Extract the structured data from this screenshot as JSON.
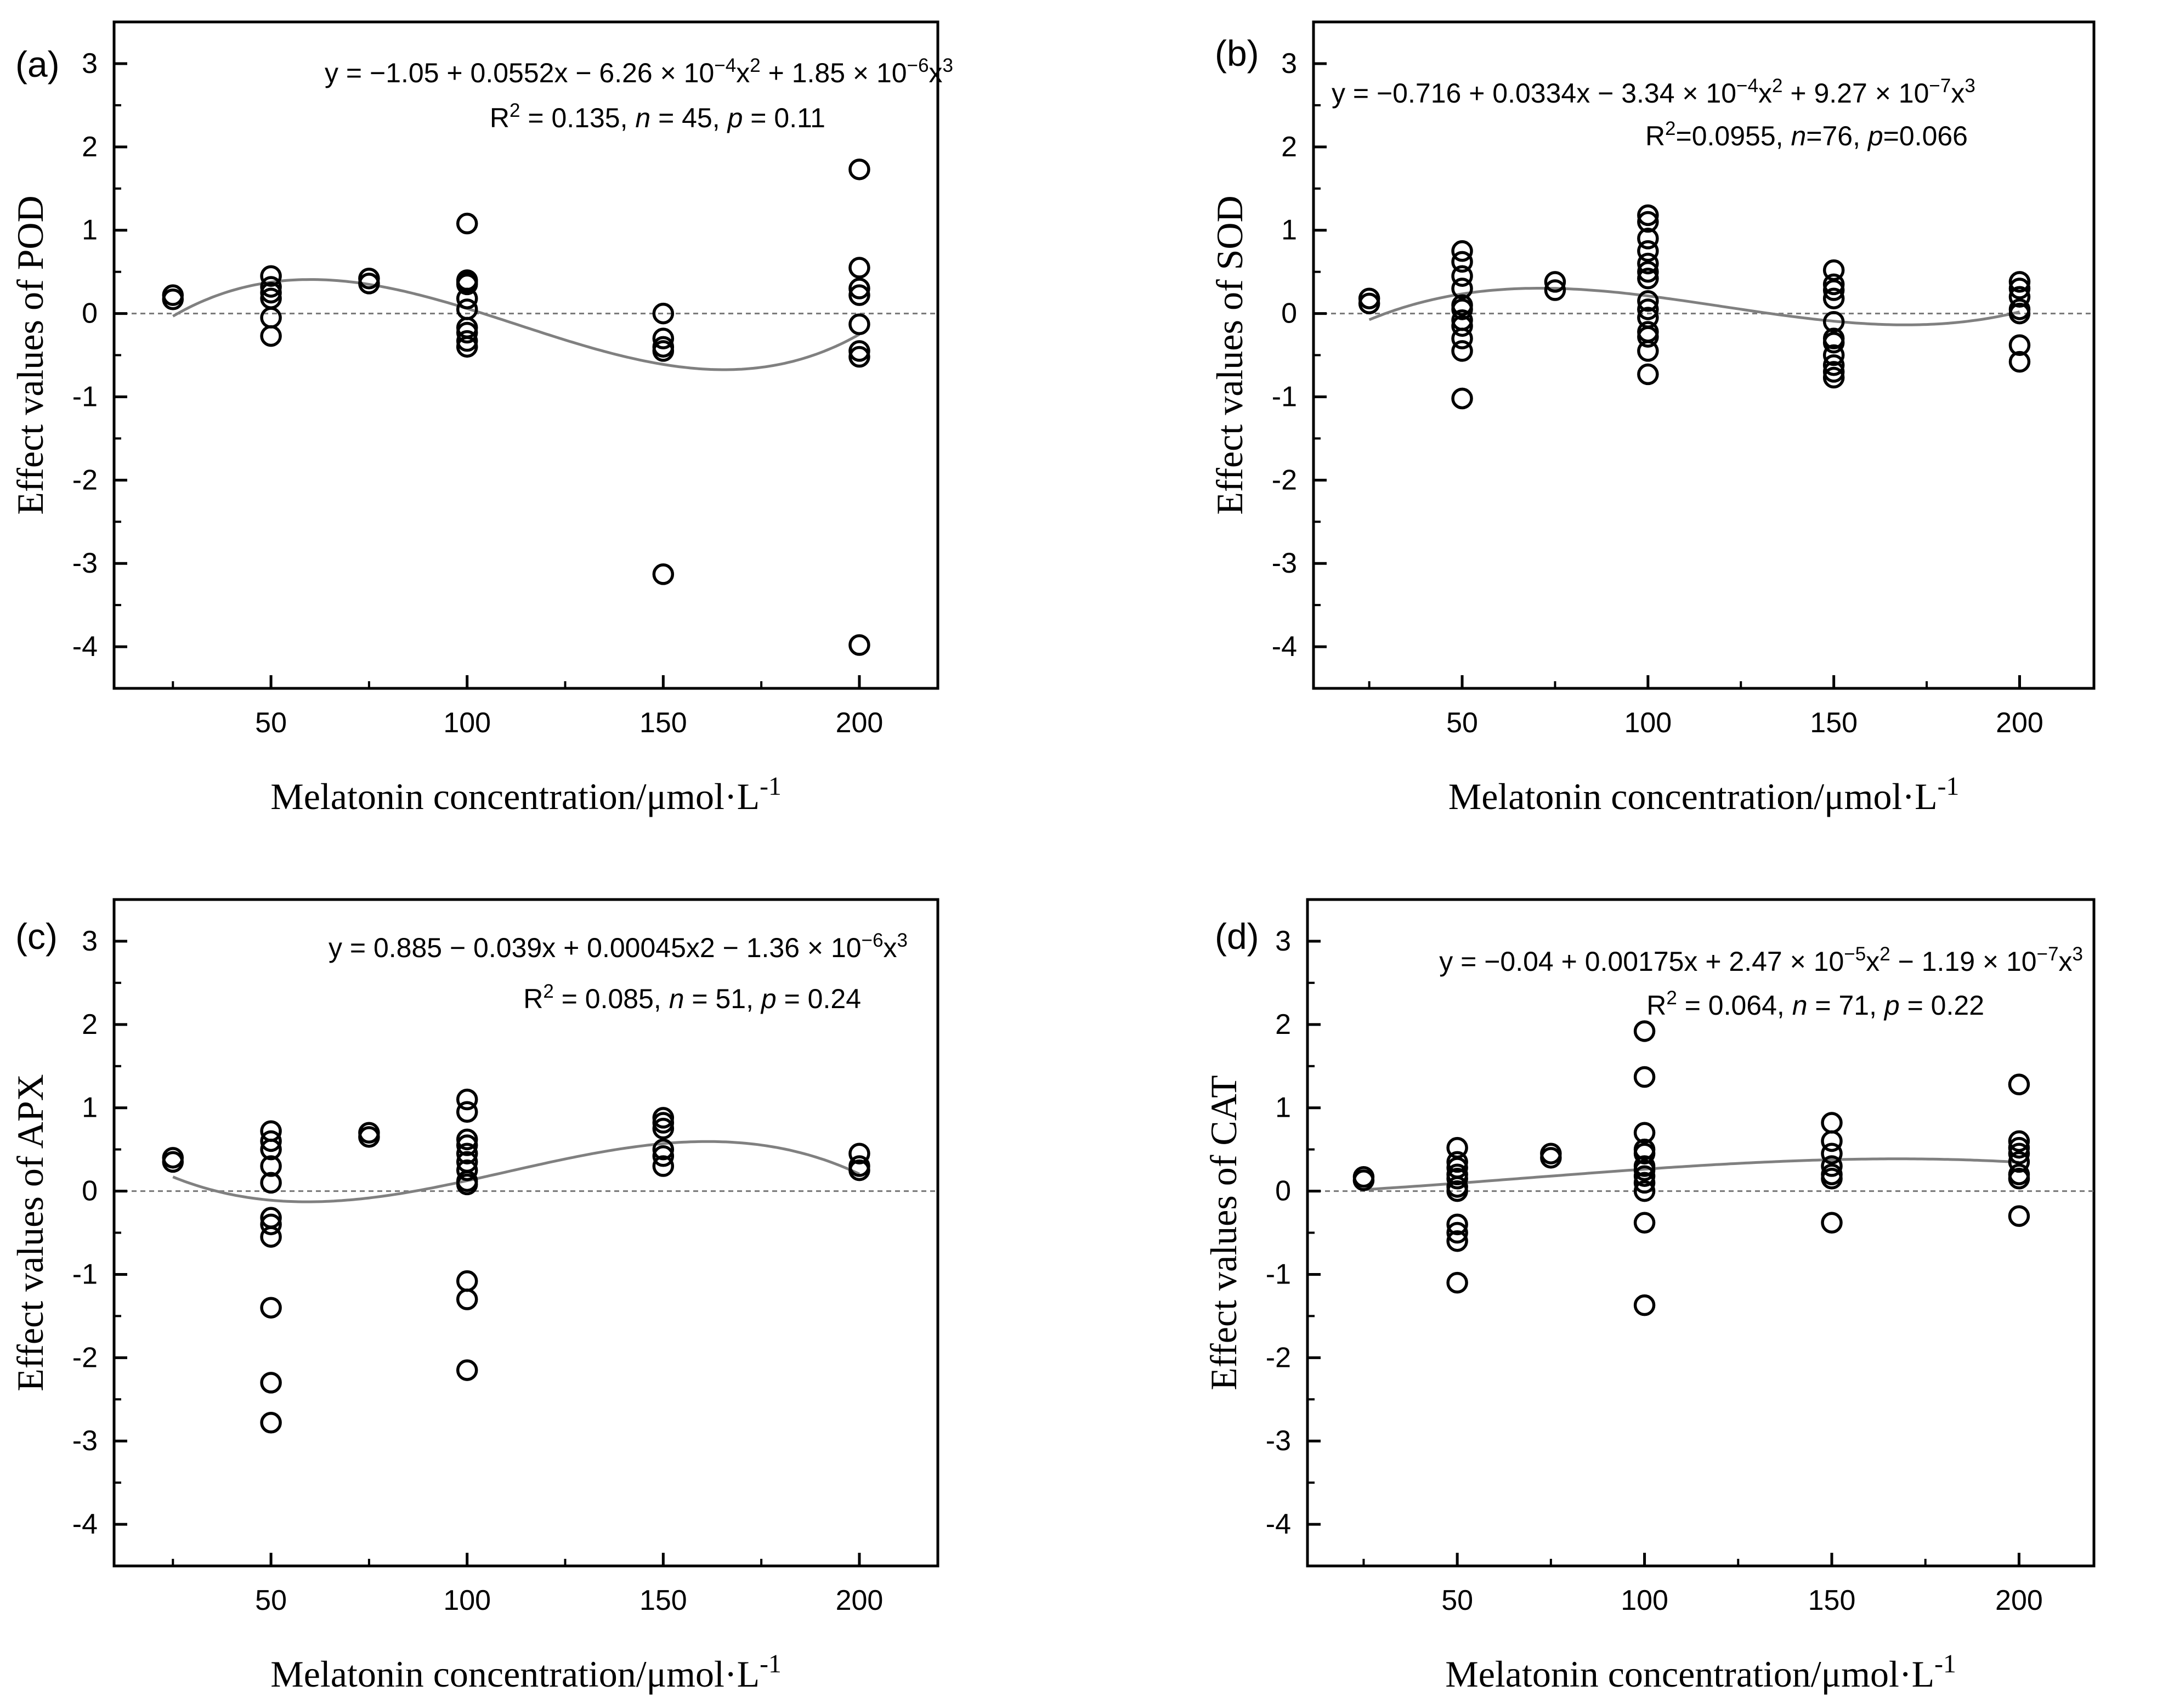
{
  "chart_data": [
    {
      "type": "scatter",
      "panel": "(a)",
      "xlabel": "Melatonin concentration/μmol·L",
      "xlabel_sup": "-1",
      "ylabel": "Effect values of POD",
      "xlim": [
        10,
        220
      ],
      "ylim": [
        -4.5,
        3.5
      ],
      "xticks": [
        50,
        100,
        150,
        200
      ],
      "yticks": [
        3,
        2,
        1,
        0,
        -1,
        -2,
        -3,
        -4
      ],
      "equation": [
        "y = −1.05 + 0.0552x − 6.26 × 10",
        "−4",
        "x",
        "2",
        " + 1.85 × 10",
        "−6",
        "x",
        "3"
      ],
      "stats": [
        "R",
        "2",
        " = 0.135,  ",
        "n",
        " = 45,  ",
        "p",
        " = 0.11"
      ],
      "fit_coefficients": [
        -1.05,
        0.0552,
        -0.000626,
        1.85e-06
      ],
      "fit_range": [
        25,
        200
      ],
      "points": [
        {
          "x": 25,
          "y": [
            0.17,
            0.22
          ]
        },
        {
          "x": 50,
          "y": [
            0.45,
            0.32,
            0.25,
            0.18,
            -0.05,
            -0.27
          ]
        },
        {
          "x": 75,
          "y": [
            0.42,
            0.36
          ]
        },
        {
          "x": 100,
          "y": [
            1.08,
            0.4,
            0.38,
            0.35,
            0.18,
            0.05,
            -0.17,
            -0.23,
            -0.33,
            -0.4
          ]
        },
        {
          "x": 150,
          "y": [
            0.0,
            -0.3,
            -0.4,
            -0.45,
            -3.13
          ]
        },
        {
          "x": 200,
          "y": [
            1.73,
            0.55,
            0.3,
            0.22,
            -0.13,
            -0.45,
            -0.52,
            -3.98
          ]
        }
      ]
    },
    {
      "type": "scatter",
      "panel": "(b)",
      "xlabel": "Melatonin concentration/μmol·L",
      "xlabel_sup": "-1",
      "ylabel": "Effect values of SOD",
      "xlim": [
        10,
        220
      ],
      "ylim": [
        -4.5,
        3.5
      ],
      "xticks": [
        50,
        100,
        150,
        200
      ],
      "yticks": [
        3,
        2,
        1,
        0,
        -1,
        -2,
        -3,
        -4
      ],
      "equation": [
        "y = −0.716 + 0.0334x − 3.34 × 10",
        "−4",
        "x",
        "2",
        " + 9.27 × 10",
        "−7",
        "x",
        "3"
      ],
      "stats": [
        "R",
        "2",
        "=0.0955,  ",
        "n",
        "=76,  ",
        "p",
        "=0.066"
      ],
      "fit_coefficients": [
        -0.716,
        0.0334,
        -0.000334,
        9.27e-07
      ],
      "fit_range": [
        25,
        200
      ],
      "points": [
        {
          "x": 25,
          "y": [
            0.18,
            0.12
          ]
        },
        {
          "x": 50,
          "y": [
            0.75,
            0.62,
            0.45,
            0.3,
            0.1,
            0.05,
            -0.08,
            -0.15,
            -0.3,
            -0.45,
            -1.02
          ]
        },
        {
          "x": 75,
          "y": [
            0.38,
            0.28
          ]
        },
        {
          "x": 100,
          "y": [
            1.18,
            1.1,
            0.9,
            0.75,
            0.6,
            0.5,
            0.42,
            0.15,
            0.05,
            -0.05,
            -0.22,
            -0.28,
            -0.45,
            -0.73
          ]
        },
        {
          "x": 150,
          "y": [
            0.52,
            0.35,
            0.28,
            0.18,
            -0.1,
            -0.3,
            -0.35,
            -0.5,
            -0.62,
            -0.7,
            -0.77
          ]
        },
        {
          "x": 200,
          "y": [
            0.38,
            0.3,
            0.2,
            0.05,
            0.0,
            -0.38,
            -0.58
          ]
        }
      ]
    },
    {
      "type": "scatter",
      "panel": "(c)",
      "xlabel": "Melatonin concentration/μmol·L",
      "xlabel_sup": "-1",
      "ylabel": "Effect values of APX",
      "xlim": [
        10,
        220
      ],
      "ylim": [
        -4.5,
        3.5
      ],
      "xticks": [
        50,
        100,
        150,
        200
      ],
      "yticks": [
        3,
        2,
        1,
        0,
        -1,
        -2,
        -3,
        -4
      ],
      "equation": [
        "y = 0.885 − 0.039x + 0.00045x",
        "2",
        " − 1.36 × 10",
        "−6",
        "x",
        "3"
      ],
      "stats": [
        "R",
        "2",
        " = 0.085,  ",
        "n",
        " = 51,  ",
        "p",
        " = 0.24"
      ],
      "fit_coefficients": [
        0.885,
        -0.039,
        0.00045,
        -1.36e-06
      ],
      "fit_range": [
        25,
        200
      ],
      "points": [
        {
          "x": 25,
          "y": [
            0.4,
            0.35
          ]
        },
        {
          "x": 50,
          "y": [
            0.72,
            0.6,
            0.5,
            0.3,
            0.1,
            -0.32,
            -0.4,
            -0.55,
            -1.4,
            -2.3,
            -2.78
          ]
        },
        {
          "x": 75,
          "y": [
            0.7,
            0.65
          ]
        },
        {
          "x": 100,
          "y": [
            1.1,
            0.95,
            0.62,
            0.55,
            0.45,
            0.35,
            0.25,
            0.12,
            0.08,
            -1.08,
            -1.3,
            -2.15
          ]
        },
        {
          "x": 150,
          "y": [
            0.88,
            0.82,
            0.75,
            0.5,
            0.42,
            0.3
          ]
        },
        {
          "x": 200,
          "y": [
            0.45,
            0.3,
            0.25
          ]
        }
      ]
    },
    {
      "type": "scatter",
      "panel": "(d)",
      "xlabel": "Melatonin concentration/μmol·L",
      "xlabel_sup": "-1",
      "ylabel": "Effect values of CAT",
      "xlim": [
        10,
        220
      ],
      "ylim": [
        -4.5,
        3.5
      ],
      "xticks": [
        50,
        100,
        150,
        200
      ],
      "yticks": [
        3,
        2,
        1,
        0,
        -1,
        -2,
        -3,
        -4
      ],
      "equation": [
        "y = −0.04 + 0.00175x + 2.47 × 10",
        "−5",
        "x",
        "2",
        " − 1.19 × 10",
        "−7",
        "x",
        "3"
      ],
      "stats": [
        "R",
        "2",
        " = 0.064,  ",
        "n",
        " = 71,  ",
        "p",
        " = 0.22"
      ],
      "fit_coefficients": [
        -0.04,
        0.00175,
        2.47e-05,
        -1.19e-07
      ],
      "fit_range": [
        25,
        200
      ],
      "points": [
        {
          "x": 25,
          "y": [
            0.17,
            0.13
          ]
        },
        {
          "x": 50,
          "y": [
            0.52,
            0.35,
            0.28,
            0.2,
            0.15,
            0.05,
            0.0,
            -0.4,
            -0.5,
            -0.6,
            -1.1
          ]
        },
        {
          "x": 75,
          "y": [
            0.45,
            0.4
          ]
        },
        {
          "x": 100,
          "y": [
            1.92,
            1.37,
            0.7,
            0.5,
            0.45,
            0.3,
            0.25,
            0.18,
            0.1,
            0.0,
            -0.38,
            -1.37
          ]
        },
        {
          "x": 150,
          "y": [
            0.82,
            0.6,
            0.45,
            0.3,
            0.2,
            0.15,
            -0.38
          ]
        },
        {
          "x": 200,
          "y": [
            1.28,
            0.6,
            0.52,
            0.45,
            0.35,
            0.2,
            0.15,
            -0.3
          ]
        }
      ]
    }
  ]
}
